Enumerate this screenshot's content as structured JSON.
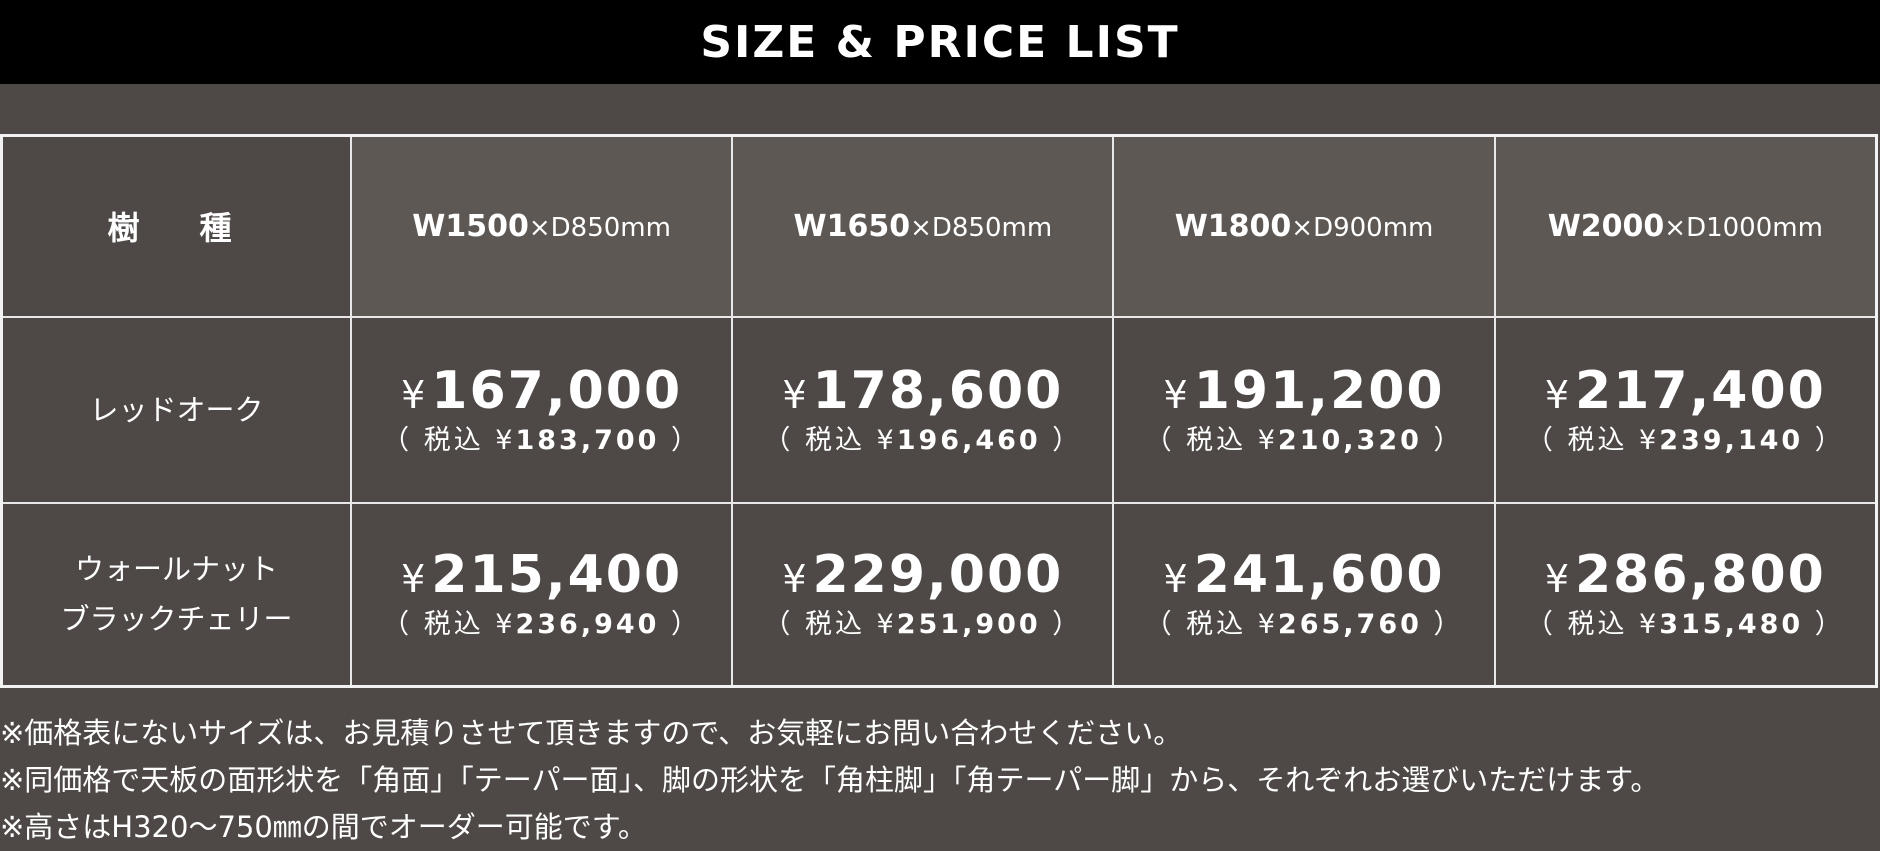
{
  "title": "SIZE & PRICE LIST",
  "table": {
    "species_header": "樹　種",
    "sizes": [
      {
        "w": "W1500",
        "d": "×D850mm"
      },
      {
        "w": "W1650",
        "d": "×D850mm"
      },
      {
        "w": "W1800",
        "d": "×D900mm"
      },
      {
        "w": "W2000",
        "d": "×D1000mm"
      }
    ],
    "rows": [
      {
        "name_lines": [
          "レッドオーク"
        ],
        "prices": [
          {
            "yen": "¥",
            "price": "167,000",
            "tax_prefix": "（ 税込 ¥",
            "tax": "183,700",
            "tax_suffix": " ）"
          },
          {
            "yen": "¥",
            "price": "178,600",
            "tax_prefix": "（ 税込 ¥",
            "tax": "196,460",
            "tax_suffix": " ）"
          },
          {
            "yen": "¥",
            "price": "191,200",
            "tax_prefix": "（ 税込 ¥",
            "tax": "210,320",
            "tax_suffix": " ）"
          },
          {
            "yen": "¥",
            "price": "217,400",
            "tax_prefix": "（ 税込 ¥",
            "tax": "239,140",
            "tax_suffix": " ）"
          }
        ]
      },
      {
        "name_lines": [
          "ウォールナット",
          "ブラックチェリー"
        ],
        "prices": [
          {
            "yen": "¥",
            "price": "215,400",
            "tax_prefix": "（ 税込 ¥",
            "tax": "236,940",
            "tax_suffix": " ）"
          },
          {
            "yen": "¥",
            "price": "229,000",
            "tax_prefix": "（ 税込 ¥",
            "tax": "251,900",
            "tax_suffix": " ）"
          },
          {
            "yen": "¥",
            "price": "241,600",
            "tax_prefix": "（ 税込 ¥",
            "tax": "265,760",
            "tax_suffix": " ）"
          },
          {
            "yen": "¥",
            "price": "286,800",
            "tax_prefix": "（ 税込 ¥",
            "tax": "315,480",
            "tax_suffix": " ）"
          }
        ]
      }
    ]
  },
  "notes": [
    "※価格表にないサイズは、お見積りさせて頂きますので、お気軽にお問い合わせください。",
    "※同価格で天板の面形状を「角面」「テーパー面」、脚の形状を「角柱脚」「角テーパー脚」から、それぞれお選びいただけます。",
    "※高さはH320〜750㎜の間でオーダー可能です。"
  ],
  "colors": {
    "background": "#4e4946",
    "header_cell": "#5d5854",
    "title_bar": "#000000",
    "text": "#ffffff"
  }
}
